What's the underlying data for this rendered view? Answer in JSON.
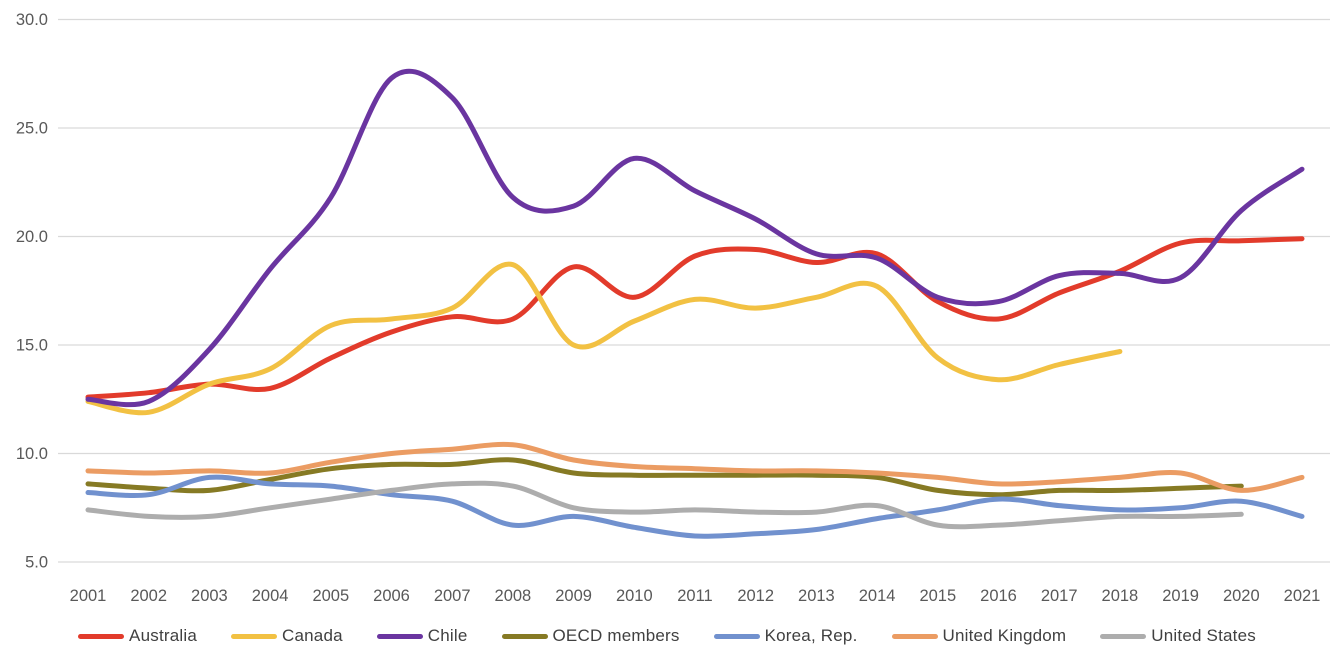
{
  "chart_data": {
    "type": "line",
    "title": "",
    "x": [
      2001,
      2002,
      2003,
      2004,
      2005,
      2006,
      2007,
      2008,
      2009,
      2010,
      2011,
      2012,
      2013,
      2014,
      2015,
      2016,
      2017,
      2018,
      2019,
      2020,
      2021
    ],
    "x_tick_labels": [
      "2001",
      "2002",
      "2003",
      "2004",
      "2005",
      "2006",
      "2007",
      "2008",
      "2009",
      "2010",
      "2011",
      "2012",
      "2013",
      "2014",
      "2015",
      "2016",
      "2017",
      "2018",
      "2019",
      "2020",
      "2021"
    ],
    "y_axis": {
      "min": 5.0,
      "max": 30.0,
      "tick_step": 5.0,
      "ticks": [
        5.0,
        10.0,
        15.0,
        20.0,
        25.0,
        30.0
      ],
      "tick_labels": [
        "5.0",
        "10.0",
        "15.0",
        "20.0",
        "25.0",
        "30.0"
      ]
    },
    "grid": "horizontal",
    "legend_position": "bottom",
    "line_style": "smooth",
    "series": [
      {
        "name": "Australia",
        "slug": "australia",
        "color": "#E23B2B",
        "values": [
          12.6,
          12.8,
          13.2,
          13.0,
          14.4,
          15.6,
          16.3,
          16.2,
          18.6,
          17.2,
          19.1,
          19.4,
          18.8,
          19.2,
          17.0,
          16.2,
          17.4,
          18.4,
          19.7,
          19.8,
          19.9
        ]
      },
      {
        "name": "Canada",
        "slug": "canada",
        "color": "#F2C143",
        "values": [
          12.4,
          11.9,
          13.2,
          13.9,
          15.9,
          16.2,
          16.7,
          18.7,
          15.0,
          16.1,
          17.1,
          16.7,
          17.2,
          17.7,
          14.4,
          13.4,
          14.1,
          14.7
        ]
      },
      {
        "name": "Chile",
        "slug": "chile",
        "color": "#6A35A0",
        "values": [
          12.5,
          12.4,
          14.8,
          18.5,
          21.8,
          27.3,
          26.4,
          21.8,
          21.4,
          23.6,
          22.1,
          20.8,
          19.2,
          19.0,
          17.2,
          17.0,
          18.2,
          18.3,
          18.1,
          21.2,
          23.1
        ]
      },
      {
        "name": "OECD members",
        "slug": "oecd-members",
        "color": "#867A24",
        "values": [
          8.6,
          8.4,
          8.3,
          8.8,
          9.3,
          9.5,
          9.5,
          9.7,
          9.1,
          9.0,
          9.0,
          9.0,
          9.0,
          8.9,
          8.3,
          8.1,
          8.3,
          8.3,
          8.4,
          8.5
        ]
      },
      {
        "name": "Korea, Rep.",
        "slug": "korea-rep",
        "color": "#7191CE",
        "values": [
          8.2,
          8.1,
          8.9,
          8.6,
          8.5,
          8.1,
          7.8,
          6.7,
          7.1,
          6.6,
          6.2,
          6.3,
          6.5,
          7.0,
          7.4,
          7.9,
          7.6,
          7.4,
          7.5,
          7.8,
          7.1
        ]
      },
      {
        "name": "United Kingdom",
        "slug": "united-kingdom",
        "color": "#EB9C63",
        "values": [
          9.2,
          9.1,
          9.2,
          9.1,
          9.6,
          10.0,
          10.2,
          10.4,
          9.7,
          9.4,
          9.3,
          9.2,
          9.2,
          9.1,
          8.9,
          8.6,
          8.7,
          8.9,
          9.1,
          8.3,
          8.9
        ]
      },
      {
        "name": "United States",
        "slug": "united-states",
        "color": "#ADADAD",
        "values": [
          7.4,
          7.1,
          7.1,
          7.5,
          7.9,
          8.3,
          8.6,
          8.5,
          7.5,
          7.3,
          7.4,
          7.3,
          7.3,
          7.6,
          6.7,
          6.7,
          6.9,
          7.1,
          7.1,
          7.2
        ]
      }
    ]
  },
  "style": {
    "gridline_color": "#D9D9D9",
    "axis_text_color": "#595959",
    "legend_text_color": "#404040",
    "background": "#FFFFFF",
    "line_width": 5
  }
}
